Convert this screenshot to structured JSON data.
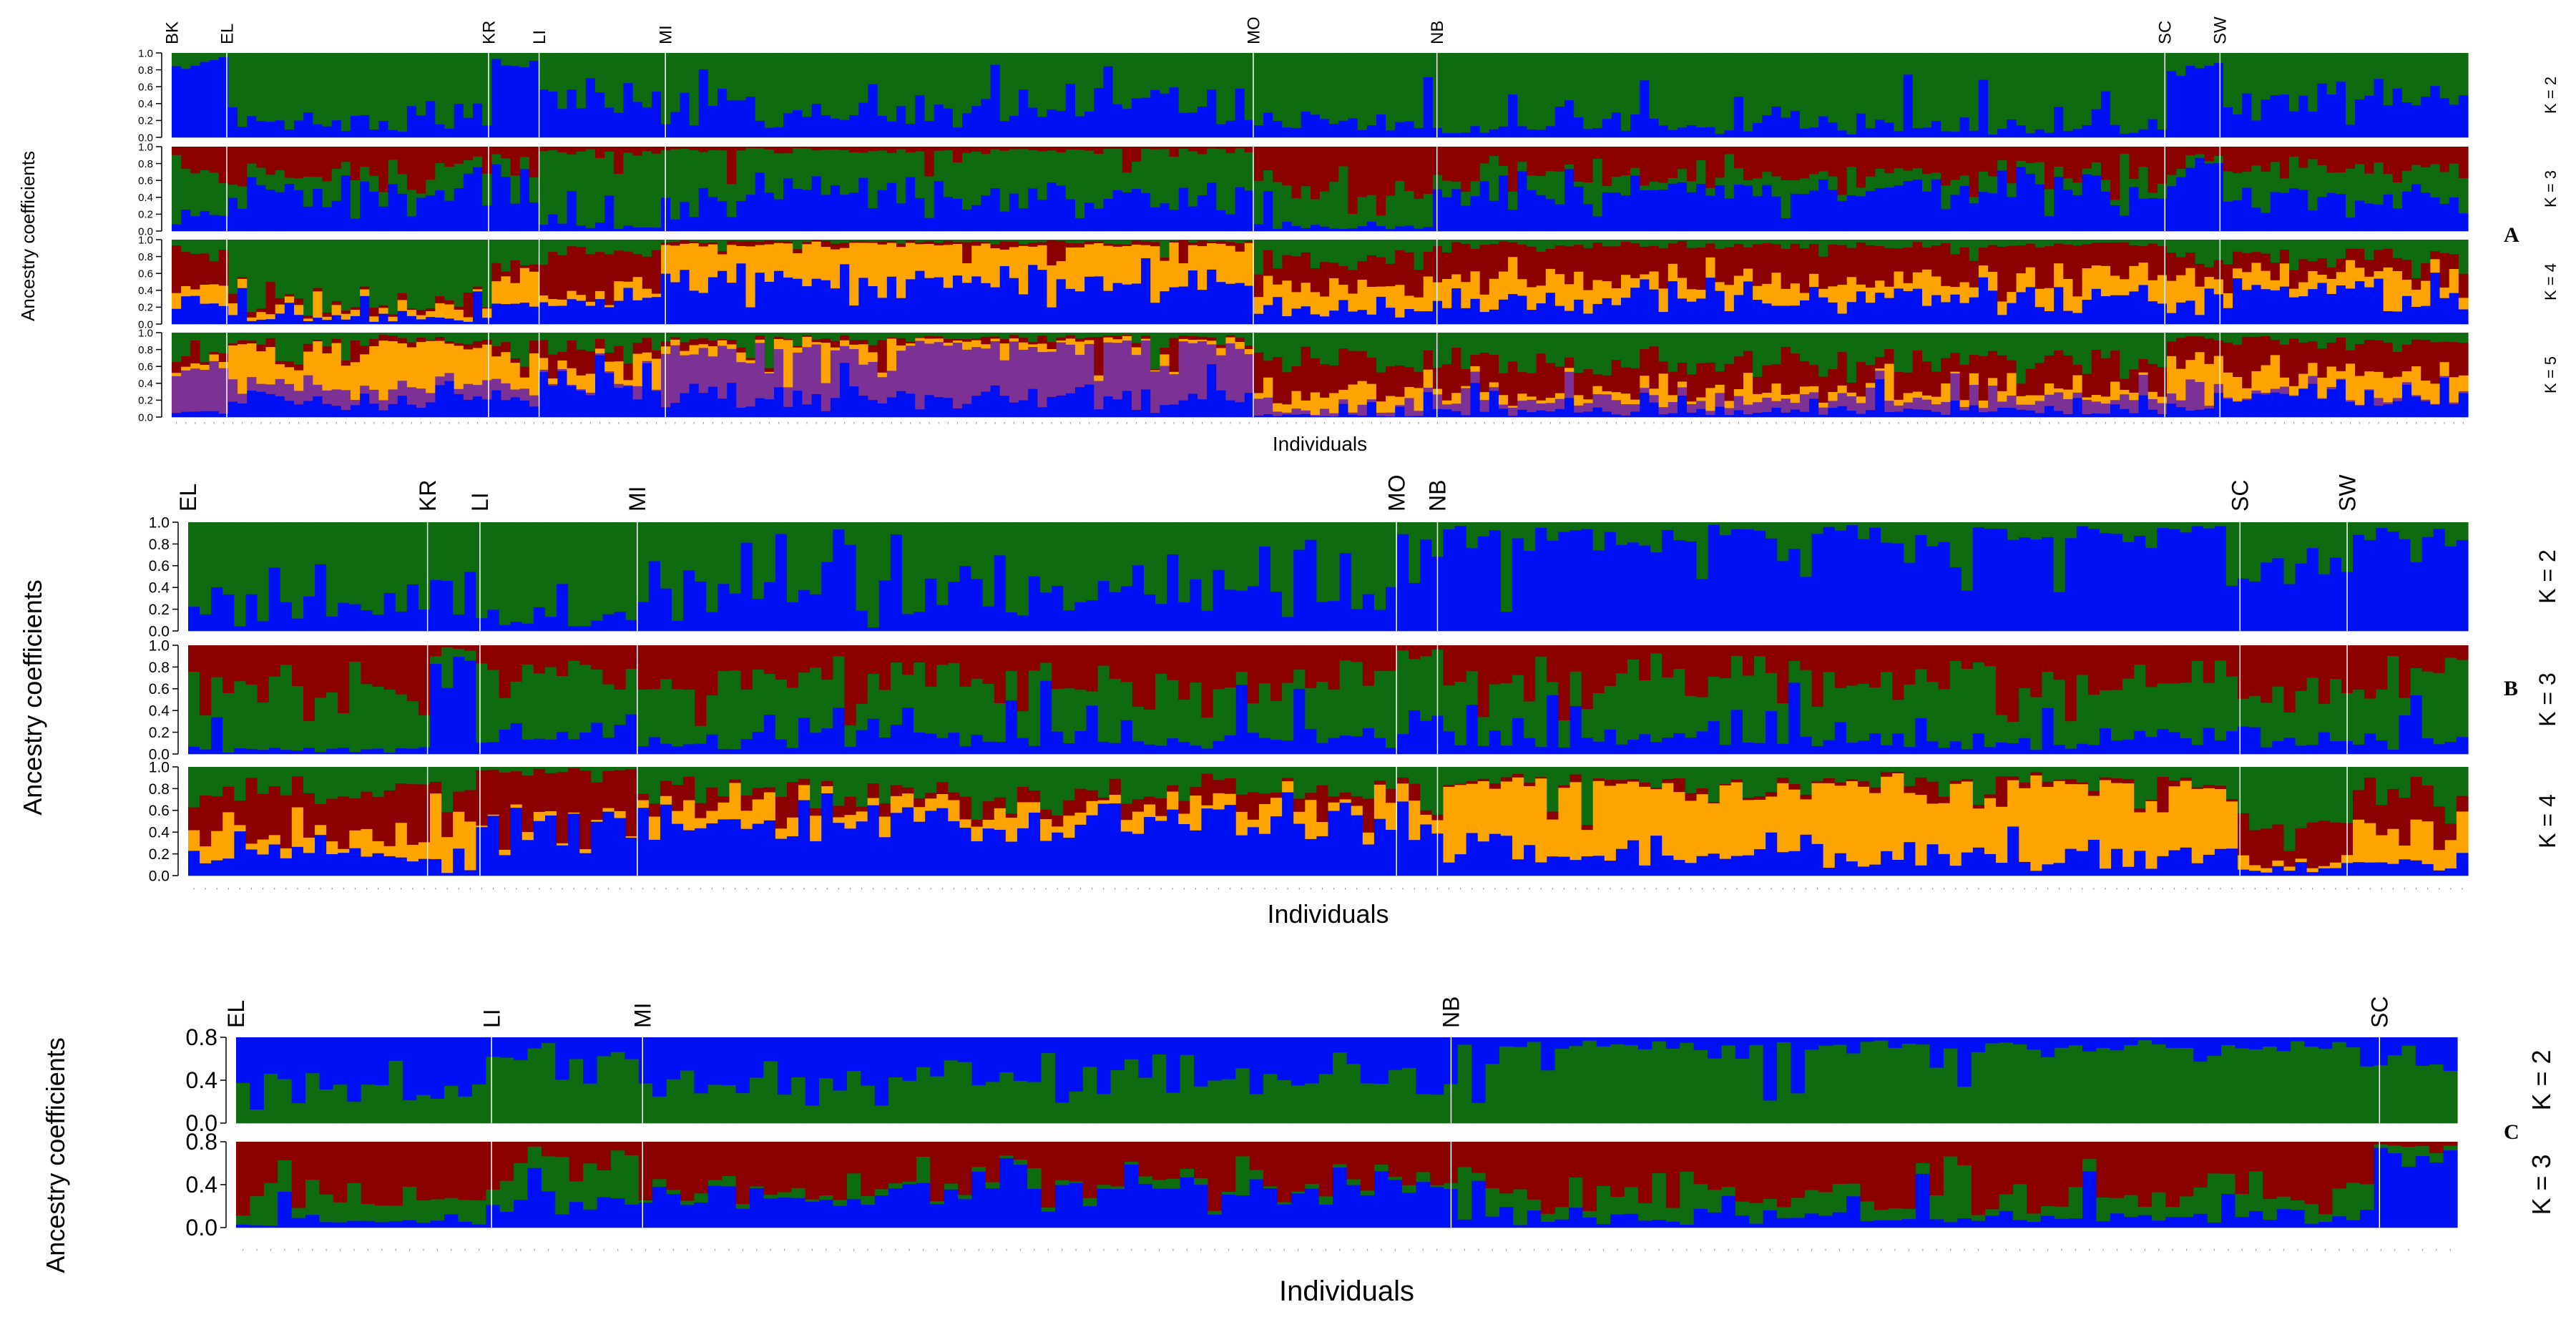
{
  "colors": {
    "green": "#0f6b10",
    "blue": "#0010f4",
    "red": "#8b0000",
    "orange": "#fda400",
    "purple": "#7b3294",
    "axis": "#000000"
  },
  "chart_data": [
    {
      "type": "bar",
      "subtype": "stacked-ancestry",
      "panel": "A",
      "ylabel": "Ancestry coefficients",
      "xlabel": "Individuals",
      "ylim": [
        0,
        1
      ],
      "yticks": [
        "1.0",
        "0.8",
        "0.6",
        "0.4",
        "0.2",
        "0.0"
      ],
      "populations": [
        {
          "label": "BK",
          "start": 0.0,
          "end": 0.024
        },
        {
          "label": "EL",
          "start": 0.024,
          "end": 0.138
        },
        {
          "label": "KR",
          "start": 0.138,
          "end": 0.16
        },
        {
          "label": "LI",
          "start": 0.16,
          "end": 0.215
        },
        {
          "label": "MI",
          "start": 0.215,
          "end": 0.471
        },
        {
          "label": "MO",
          "start": 0.471,
          "end": 0.551
        },
        {
          "label": "NB",
          "start": 0.551,
          "end": 0.868
        },
        {
          "label": "SC",
          "start": 0.868,
          "end": 0.892
        },
        {
          "label": "SW",
          "start": 0.892,
          "end": 1.0
        }
      ],
      "rows": [
        {
          "k_label": "K = 2",
          "palette": [
            "green",
            "blue"
          ]
        },
        {
          "k_label": "K = 3",
          "palette": [
            "red",
            "green",
            "blue"
          ]
        },
        {
          "k_label": "K = 4",
          "palette": [
            "green",
            "red",
            "orange",
            "blue"
          ]
        },
        {
          "k_label": "K = 5",
          "palette": [
            "green",
            "red",
            "orange",
            "purple",
            "blue"
          ]
        }
      ]
    },
    {
      "type": "bar",
      "subtype": "stacked-ancestry",
      "panel": "B",
      "ylabel": "Ancestry coefficients",
      "xlabel": "Individuals",
      "ylim": [
        0,
        1
      ],
      "yticks": [
        "1.0",
        "0.8",
        "0.6",
        "0.4",
        "0.2",
        "0.0"
      ],
      "populations": [
        {
          "label": "EL",
          "start": 0.0,
          "end": 0.105
        },
        {
          "label": "KR",
          "start": 0.105,
          "end": 0.128
        },
        {
          "label": "LI",
          "start": 0.128,
          "end": 0.197
        },
        {
          "label": "MI",
          "start": 0.197,
          "end": 0.53
        },
        {
          "label": "MO",
          "start": 0.53,
          "end": 0.548
        },
        {
          "label": "NB",
          "start": 0.548,
          "end": 0.9
        },
        {
          "label": "SC",
          "start": 0.9,
          "end": 0.947
        },
        {
          "label": "SW",
          "start": 0.947,
          "end": 1.0
        }
      ],
      "rows": [
        {
          "k_label": "K = 2",
          "palette": [
            "green",
            "blue"
          ]
        },
        {
          "k_label": "K = 3",
          "palette": [
            "red",
            "green",
            "blue"
          ]
        },
        {
          "k_label": "K = 4",
          "palette": [
            "green",
            "red",
            "orange",
            "blue"
          ]
        }
      ]
    },
    {
      "type": "bar",
      "subtype": "stacked-ancestry",
      "panel": "C",
      "ylabel": "Ancestry coefficients",
      "xlabel": "Individuals",
      "ylim": [
        0,
        1
      ],
      "yticks": [
        "0.8",
        "0.4",
        "0.0"
      ],
      "populations": [
        {
          "label": "EL",
          "start": 0.0,
          "end": 0.115
        },
        {
          "label": "LI",
          "start": 0.115,
          "end": 0.183
        },
        {
          "label": "MI",
          "start": 0.183,
          "end": 0.547
        },
        {
          "label": "NB",
          "start": 0.547,
          "end": 0.965
        },
        {
          "label": "SC",
          "start": 0.965,
          "end": 1.0
        }
      ],
      "rows": [
        {
          "k_label": "K = 2",
          "palette": [
            "blue",
            "green"
          ]
        },
        {
          "k_label": "K = 3",
          "palette": [
            "red",
            "green",
            "blue"
          ]
        }
      ]
    }
  ]
}
